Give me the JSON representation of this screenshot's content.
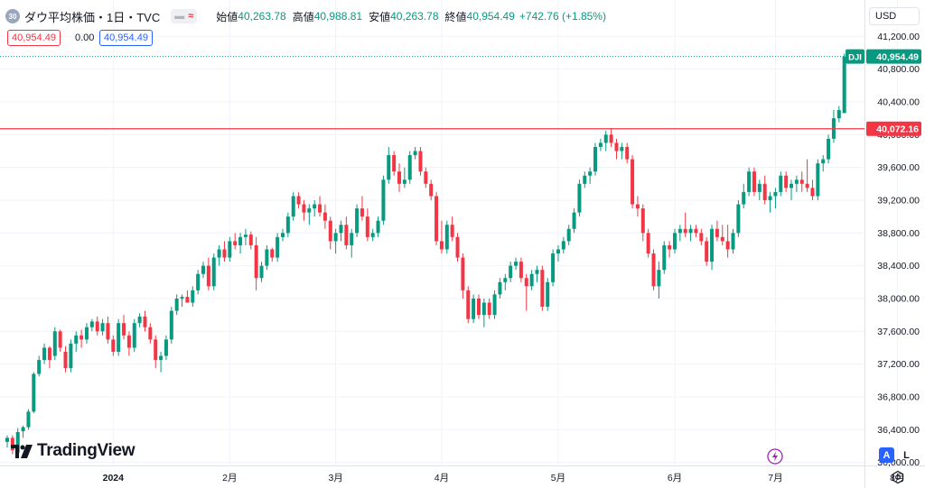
{
  "header": {
    "symbol_badge": "30",
    "symbol_title": "ダウ平均株価・1日・TVC",
    "open_label": "始値",
    "open_value": "40,263.78",
    "high_label": "高値",
    "high_value": "40,988.81",
    "low_label": "安値",
    "low_value": "40,263.78",
    "close_label": "終値",
    "close_value": "40,954.49",
    "change": "+742.76 (+1.85%)"
  },
  "trade": {
    "bid": "40,954.49",
    "spread": "0.00",
    "ask": "40,954.49"
  },
  "currency": "USD",
  "branding": "TradingView",
  "scale_buttons": {
    "auto": "A",
    "log": "L"
  },
  "colors": {
    "up": "#089981",
    "down": "#f23645",
    "accent": "#2962ff",
    "grid": "#f0f3fa"
  },
  "icons": [
    "symbol-badge",
    "minus-icon",
    "wave-icon",
    "lightning-icon",
    "gear-icon",
    "tradingview-logo"
  ],
  "chart_data": {
    "type": "candlestick",
    "symbol": "DJI",
    "ylim": [
      35750,
      41400
    ],
    "y_ticks": [
      36000,
      36400,
      36800,
      37200,
      37600,
      38000,
      38400,
      38800,
      39200,
      39600,
      40000,
      40400,
      40800,
      41200
    ],
    "y_tick_labels": [
      "36,000.00",
      "36,400.00",
      "36,800.00",
      "37,200.00",
      "37,600.00",
      "38,000.00",
      "38,400.00",
      "38,800.00",
      "39,200.00",
      "39,600.00",
      "40,000.00",
      "40,400.00",
      "40,800.00",
      "41,200.00"
    ],
    "x_labels": [
      {
        "label": "2024",
        "bar": 20
      },
      {
        "label": "2月",
        "bar": 42
      },
      {
        "label": "3月",
        "bar": 62
      },
      {
        "label": "4月",
        "bar": 82
      },
      {
        "label": "5月",
        "bar": 104
      },
      {
        "label": "6月",
        "bar": 126
      },
      {
        "label": "7月",
        "bar": 145
      },
      {
        "label": "8月",
        "bar": 168
      }
    ],
    "last_price": {
      "label": "DJI",
      "value": "40,954.49",
      "y": 40954.49
    },
    "horizontal_line": {
      "value": "40,072.16",
      "y": 40072.16
    },
    "candles": [
      [
        36250,
        36330,
        36180,
        36300
      ],
      [
        36300,
        36330,
        36100,
        36150
      ],
      [
        36120,
        36420,
        36080,
        36370
      ],
      [
        36380,
        36450,
        36300,
        36430
      ],
      [
        36430,
        36650,
        36400,
        36620
      ],
      [
        36620,
        37100,
        36600,
        37080
      ],
      [
        37080,
        37300,
        37050,
        37250
      ],
      [
        37250,
        37450,
        37200,
        37400
      ],
      [
        37400,
        37420,
        37150,
        37250
      ],
      [
        37300,
        37650,
        37250,
        37600
      ],
      [
        37600,
        37620,
        37350,
        37400
      ],
      [
        37350,
        37420,
        37100,
        37150
      ],
      [
        37150,
        37500,
        37100,
        37450
      ],
      [
        37450,
        37600,
        37350,
        37550
      ],
      [
        37550,
        37620,
        37400,
        37500
      ],
      [
        37500,
        37700,
        37450,
        37650
      ],
      [
        37650,
        37750,
        37600,
        37720
      ],
      [
        37720,
        37780,
        37550,
        37600
      ],
      [
        37600,
        37750,
        37550,
        37700
      ],
      [
        37700,
        37780,
        37450,
        37500
      ],
      [
        37500,
        37550,
        37300,
        37350
      ],
      [
        37350,
        37750,
        37300,
        37700
      ],
      [
        37700,
        37800,
        37500,
        37550
      ],
      [
        37550,
        37600,
        37300,
        37400
      ],
      [
        37400,
        37750,
        37350,
        37700
      ],
      [
        37700,
        37820,
        37650,
        37780
      ],
      [
        37780,
        37850,
        37600,
        37650
      ],
      [
        37650,
        37700,
        37450,
        37500
      ],
      [
        37500,
        37550,
        37150,
        37250
      ],
      [
        37250,
        37350,
        37100,
        37300
      ],
      [
        37300,
        37550,
        37250,
        37500
      ],
      [
        37500,
        37900,
        37450,
        37850
      ],
      [
        37850,
        38050,
        37800,
        38000
      ],
      [
        38000,
        38050,
        37900,
        38020
      ],
      [
        38020,
        38100,
        37950,
        37950
      ],
      [
        37950,
        38150,
        37900,
        38100
      ],
      [
        38100,
        38350,
        38050,
        38300
      ],
      [
        38300,
        38450,
        38250,
        38400
      ],
      [
        38400,
        38500,
        38100,
        38150
      ],
      [
        38150,
        38550,
        38100,
        38500
      ],
      [
        38500,
        38650,
        38400,
        38600
      ],
      [
        38600,
        38700,
        38450,
        38500
      ],
      [
        38500,
        38750,
        38450,
        38700
      ],
      [
        38700,
        38800,
        38600,
        38650
      ],
      [
        38650,
        38800,
        38550,
        38750
      ],
      [
        38750,
        38850,
        38650,
        38780
      ],
      [
        38780,
        38820,
        38600,
        38650
      ],
      [
        38650,
        38750,
        38100,
        38250
      ],
      [
        38250,
        38450,
        38200,
        38400
      ],
      [
        38400,
        38650,
        38350,
        38600
      ],
      [
        38600,
        38620,
        38450,
        38500
      ],
      [
        38500,
        38800,
        38450,
        38750
      ],
      [
        38750,
        38850,
        38700,
        38800
      ],
      [
        38800,
        39050,
        38750,
        39000
      ],
      [
        39000,
        39300,
        38950,
        39250
      ],
      [
        39250,
        39300,
        39100,
        39150
      ],
      [
        39150,
        39200,
        38950,
        39050
      ],
      [
        39050,
        39150,
        38900,
        39100
      ],
      [
        39100,
        39200,
        39000,
        39150
      ],
      [
        39150,
        39250,
        39000,
        39050
      ],
      [
        39050,
        39150,
        38850,
        38950
      ],
      [
        38950,
        39000,
        38600,
        38700
      ],
      [
        38700,
        38850,
        38550,
        38800
      ],
      [
        38800,
        38950,
        38700,
        38900
      ],
      [
        38900,
        39000,
        38600,
        38650
      ],
      [
        38650,
        38850,
        38500,
        38800
      ],
      [
        38800,
        39150,
        38750,
        39100
      ],
      [
        39100,
        39250,
        38950,
        39000
      ],
      [
        39000,
        39100,
        38700,
        38750
      ],
      [
        38750,
        38850,
        38700,
        38800
      ],
      [
        38800,
        39000,
        38750,
        38950
      ],
      [
        38950,
        39500,
        38900,
        39450
      ],
      [
        39450,
        39850,
        39400,
        39750
      ],
      [
        39750,
        39800,
        39500,
        39550
      ],
      [
        39550,
        39650,
        39300,
        39400
      ],
      [
        39400,
        39600,
        39350,
        39450
      ],
      [
        39450,
        39800,
        39400,
        39750
      ],
      [
        39750,
        39850,
        39700,
        39800
      ],
      [
        39800,
        39850,
        39500,
        39550
      ],
      [
        39550,
        39600,
        39350,
        39400
      ],
      [
        39400,
        39450,
        39200,
        39250
      ],
      [
        39250,
        39300,
        38650,
        38700
      ],
      [
        38700,
        38950,
        38550,
        38600
      ],
      [
        38600,
        38950,
        38550,
        38900
      ],
      [
        38900,
        39000,
        38700,
        38750
      ],
      [
        38750,
        38800,
        38450,
        38500
      ],
      [
        38500,
        38550,
        38000,
        38100
      ],
      [
        38100,
        38150,
        37700,
        37750
      ],
      [
        37750,
        38050,
        37700,
        38000
      ],
      [
        38000,
        38050,
        37750,
        37800
      ],
      [
        37800,
        38000,
        37650,
        37950
      ],
      [
        37950,
        38000,
        37750,
        37800
      ],
      [
        37800,
        38100,
        37750,
        38050
      ],
      [
        38050,
        38250,
        38000,
        38200
      ],
      [
        38200,
        38300,
        38100,
        38250
      ],
      [
        38250,
        38450,
        38200,
        38400
      ],
      [
        38400,
        38500,
        38350,
        38450
      ],
      [
        38450,
        38500,
        38200,
        38250
      ],
      [
        38250,
        38300,
        37850,
        38150
      ],
      [
        38150,
        38350,
        38100,
        38300
      ],
      [
        38300,
        38400,
        38200,
        38350
      ],
      [
        38350,
        38400,
        37850,
        37900
      ],
      [
        37900,
        38250,
        37850,
        38200
      ],
      [
        38200,
        38600,
        38150,
        38550
      ],
      [
        38550,
        38650,
        38450,
        38600
      ],
      [
        38600,
        38750,
        38550,
        38700
      ],
      [
        38700,
        38900,
        38650,
        38850
      ],
      [
        38850,
        39100,
        38800,
        39050
      ],
      [
        39050,
        39450,
        39000,
        39400
      ],
      [
        39400,
        39550,
        39350,
        39500
      ],
      [
        39500,
        39600,
        39400,
        39550
      ],
      [
        39550,
        39900,
        39500,
        39850
      ],
      [
        39850,
        39950,
        39800,
        39900
      ],
      [
        39900,
        40050,
        39800,
        40000
      ],
      [
        40000,
        40080,
        39850,
        39900
      ],
      [
        39900,
        39950,
        39700,
        39800
      ],
      [
        39800,
        39900,
        39700,
        39850
      ],
      [
        39850,
        39900,
        39650,
        39700
      ],
      [
        39700,
        39750,
        39100,
        39150
      ],
      [
        39150,
        39250,
        39000,
        39100
      ],
      [
        39100,
        39150,
        38700,
        38800
      ],
      [
        38800,
        38850,
        38500,
        38550
      ],
      [
        38550,
        38600,
        38100,
        38150
      ],
      [
        38150,
        38450,
        38000,
        38350
      ],
      [
        38350,
        38700,
        38300,
        38650
      ],
      [
        38650,
        38700,
        38500,
        38600
      ],
      [
        38600,
        38850,
        38550,
        38800
      ],
      [
        38800,
        38900,
        38700,
        38850
      ],
      [
        38850,
        39050,
        38750,
        38800
      ],
      [
        38800,
        38900,
        38700,
        38850
      ],
      [
        38850,
        38900,
        38750,
        38800
      ],
      [
        38800,
        38850,
        38650,
        38700
      ],
      [
        38700,
        38750,
        38400,
        38450
      ],
      [
        38450,
        38900,
        38350,
        38850
      ],
      [
        38850,
        38950,
        38700,
        38750
      ],
      [
        38750,
        38900,
        38650,
        38700
      ],
      [
        38700,
        38900,
        38500,
        38600
      ],
      [
        38600,
        38850,
        38550,
        38800
      ],
      [
        38800,
        39200,
        38750,
        39150
      ],
      [
        39150,
        39400,
        39100,
        39300
      ],
      [
        39300,
        39600,
        39250,
        39550
      ],
      [
        39550,
        39600,
        39250,
        39300
      ],
      [
        39300,
        39450,
        39200,
        39400
      ],
      [
        39400,
        39500,
        39150,
        39200
      ],
      [
        39200,
        39300,
        39050,
        39250
      ],
      [
        39250,
        39350,
        39100,
        39300
      ],
      [
        39300,
        39550,
        39250,
        39500
      ],
      [
        39500,
        39550,
        39300,
        39350
      ],
      [
        39350,
        39450,
        39200,
        39400
      ],
      [
        39400,
        39500,
        39300,
        39450
      ],
      [
        39450,
        39550,
        39300,
        39400
      ],
      [
        39400,
        39700,
        39300,
        39350
      ],
      [
        39350,
        39450,
        39200,
        39250
      ],
      [
        39250,
        39700,
        39200,
        39650
      ],
      [
        39650,
        39750,
        39550,
        39700
      ],
      [
        39700,
        40000,
        39650,
        39950
      ],
      [
        39950,
        40300,
        39900,
        40200
      ],
      [
        40200,
        40350,
        40150,
        40300
      ],
      [
        40263.78,
        40988.81,
        40263.78,
        40954.49
      ]
    ]
  }
}
